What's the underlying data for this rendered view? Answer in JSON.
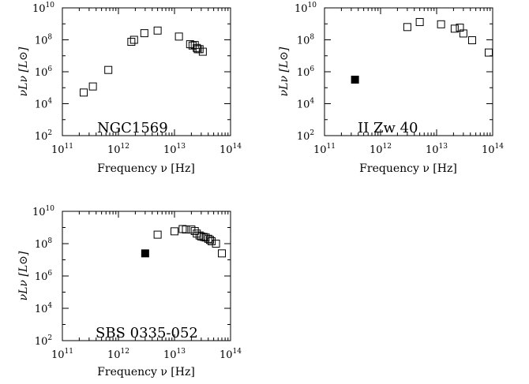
{
  "panels": [
    {
      "label": "NGC1569",
      "xlabel": "Frequency ν [Hz]",
      "ylabel": "νLν [L⊙]",
      "x_ticks": [
        11,
        12,
        13,
        14
      ],
      "y_ticks": [
        2,
        4,
        6,
        8,
        10
      ]
    },
    {
      "label": "II Zw 40",
      "xlabel": "Frequency ν [Hz]",
      "ylabel": "νLν [L⊙]",
      "x_ticks": [
        11,
        12,
        13,
        14
      ],
      "y_ticks": [
        2,
        4,
        6,
        8,
        10
      ]
    },
    {
      "label": "SBS 0335-052",
      "xlabel": "Frequency ν [Hz]",
      "ylabel": "νLν [L⊙]",
      "x_ticks": [
        11,
        12,
        13,
        14
      ],
      "y_ticks": [
        2,
        4,
        6,
        8,
        10
      ]
    }
  ],
  "chart_data": [
    {
      "type": "scatter",
      "label": "NGC1569",
      "x_scale": "log",
      "y_scale": "log",
      "xlim": [
        100000000000.0,
        100000000000000.0
      ],
      "ylim": [
        100.0,
        10000000000.0
      ],
      "xlabel": "Frequency ν [Hz]",
      "ylabel": "νLν [L⊙]",
      "series": [
        {
          "marker": "open-square",
          "x": [
            240000000000.0,
            350000000000.0,
            660000000000.0,
            1700000000000.0,
            1900000000000.0,
            2900000000000.0,
            5000000000000.0,
            12000000000000.0,
            19000000000000.0,
            21000000000000.0,
            23000000000000.0,
            25000000000000.0,
            26000000000000.0,
            28000000000000.0,
            32000000000000.0
          ],
          "y": [
            50000.0,
            120000.0,
            1300000.0,
            75000000.0,
            100000000.0,
            260000000.0,
            380000000.0,
            160000000.0,
            53000000.0,
            44000000.0,
            47000000.0,
            31000000.0,
            26000000.0,
            26000000.0,
            18000000.0
          ]
        }
      ]
    },
    {
      "type": "scatter",
      "label": "II Zw 40",
      "x_scale": "log",
      "y_scale": "log",
      "xlim": [
        100000000000.0,
        100000000000000.0
      ],
      "ylim": [
        100.0,
        10000000000.0
      ],
      "xlabel": "Frequency ν [Hz]",
      "ylabel": "νLν [L⊙]",
      "series": [
        {
          "marker": "filled-square",
          "x": [
            350000000000.0
          ],
          "y": [
            320000.0
          ]
        },
        {
          "marker": "open-square",
          "x": [
            3000000000000.0,
            5000000000000.0,
            12000000000000.0,
            21000000000000.0,
            26000000000000.0,
            30000000000000.0,
            43000000000000.0,
            85000000000000.0
          ],
          "y": [
            630000000.0,
            1300000000.0,
            940000000.0,
            500000000.0,
            580000000.0,
            250000000.0,
            94000000.0,
            16000000.0
          ]
        }
      ]
    },
    {
      "type": "scatter",
      "label": "SBS 0335-052",
      "x_scale": "log",
      "y_scale": "log",
      "xlim": [
        100000000000.0,
        100000000000000.0
      ],
      "ylim": [
        100.0,
        10000000000.0
      ],
      "xlabel": "Frequency ν [Hz]",
      "ylabel": "νLν [L⊙]",
      "series": [
        {
          "marker": "filled-square",
          "x": [
            3000000000000.0
          ],
          "y": [
            25000000.0
          ]
        },
        {
          "marker": "open-square",
          "x": [
            5000000000000.0,
            10000000000000.0,
            14000000000000.0,
            16000000000000.0,
            20000000000000.0,
            23000000000000.0,
            25000000000000.0,
            28000000000000.0,
            30000000000000.0,
            33000000000000.0,
            36000000000000.0,
            40000000000000.0,
            43000000000000.0,
            46000000000000.0,
            55000000000000.0,
            70000000000000.0
          ],
          "y": [
            360000000.0,
            580000000.0,
            800000000.0,
            750000000.0,
            750000000.0,
            600000000.0,
            420000000.0,
            320000000.0,
            280000000.0,
            260000000.0,
            240000000.0,
            200000000.0,
            170000000.0,
            140000000.0,
            100000000.0,
            25000000.0
          ]
        }
      ]
    }
  ]
}
